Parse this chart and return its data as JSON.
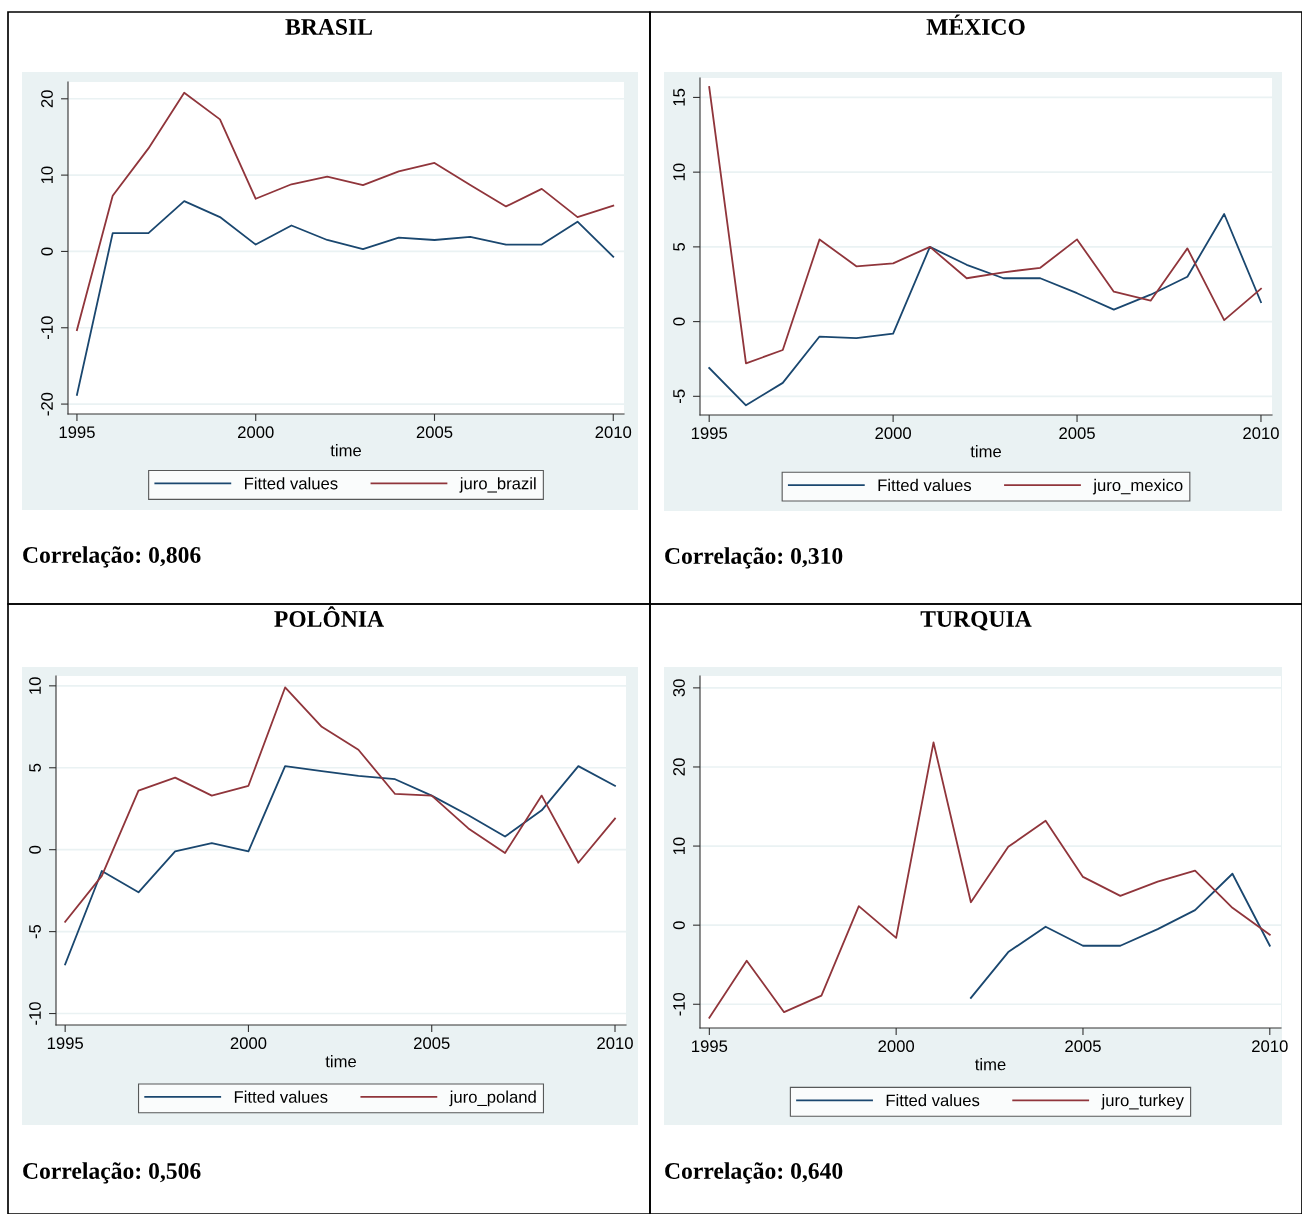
{
  "chart_data": [
    {
      "type": "line",
      "title": "BRASIL",
      "xlabel": "time",
      "x": [
        1995,
        1996,
        1997,
        1998,
        1999,
        2000,
        2001,
        2002,
        2003,
        2004,
        2005,
        2006,
        2007,
        2008,
        2009,
        2010
      ],
      "series": [
        {
          "name": "Fitted values",
          "color": "#1a476f",
          "values": [
            -18.8,
            2.4,
            2.4,
            6.6,
            4.5,
            0.9,
            3.4,
            1.5,
            0.3,
            1.8,
            1.5,
            1.9,
            0.9,
            0.9,
            3.9,
            -0.7
          ]
        },
        {
          "name": "juro_brazil",
          "color": "#90353b",
          "values": [
            -10.3,
            7.3,
            13.5,
            20.8,
            17.3,
            6.9,
            8.8,
            9.8,
            8.7,
            10.5,
            11.6,
            8.7,
            5.9,
            8.2,
            4.5,
            6.0
          ]
        }
      ],
      "xlim": [
        1994.75,
        2010.3
      ],
      "xticks": [
        1995,
        2000,
        2005,
        2010
      ],
      "ylim": [
        -21.3,
        22.2
      ],
      "yticks": [
        -20,
        -10,
        0,
        10,
        20
      ],
      "grid": "y",
      "legend": "bottom",
      "annotations": [
        "Correlação: 0,806"
      ]
    },
    {
      "type": "line",
      "title": "MÉXICO",
      "xlabel": "time",
      "x": [
        1995,
        1996,
        1997,
        1998,
        1999,
        2000,
        2001,
        2002,
        2003,
        2004,
        2005,
        2006,
        2007,
        2008,
        2009,
        2010
      ],
      "series": [
        {
          "name": "Fitted values",
          "color": "#1a476f",
          "values": [
            -3.1,
            -5.6,
            -4.1,
            -1.0,
            -1.1,
            -0.8,
            5.0,
            3.8,
            2.9,
            2.9,
            1.9,
            0.8,
            1.8,
            3.0,
            7.2,
            1.3
          ]
        },
        {
          "name": "juro_mexico",
          "color": "#90353b",
          "values": [
            15.7,
            -2.8,
            -1.9,
            5.5,
            3.7,
            3.9,
            5.0,
            2.9,
            3.3,
            3.6,
            5.5,
            2.0,
            1.4,
            4.9,
            0.1,
            2.2
          ]
        }
      ],
      "xlim": [
        1994.75,
        2010.3
      ],
      "xticks": [
        1995,
        2000,
        2005,
        2010
      ],
      "ylim": [
        -6.25,
        16.3
      ],
      "yticks": [
        -5,
        0,
        5,
        10,
        15
      ],
      "grid": "y",
      "legend": "bottom",
      "annotations": [
        "Correlação: 0,310"
      ]
    },
    {
      "type": "line",
      "title": "POLÔNIA",
      "xlabel": "time",
      "x": [
        1995,
        1996,
        1997,
        1998,
        1999,
        2000,
        2001,
        2002,
        2003,
        2004,
        2005,
        2006,
        2007,
        2008,
        2009,
        2010
      ],
      "series": [
        {
          "name": "Fitted values",
          "color": "#1a476f",
          "values": [
            -7.0,
            -1.3,
            -2.6,
            -0.1,
            0.4,
            -0.1,
            5.1,
            4.8,
            4.5,
            4.3,
            3.3,
            2.1,
            0.8,
            2.4,
            5.1,
            3.9
          ]
        },
        {
          "name": "juro_poland",
          "color": "#90353b",
          "values": [
            -4.4,
            -1.6,
            3.6,
            4.4,
            3.3,
            3.9,
            9.9,
            7.5,
            6.1,
            3.4,
            3.3,
            1.3,
            -0.2,
            3.3,
            -0.8,
            1.9
          ]
        }
      ],
      "xlim": [
        1994.75,
        2010.3
      ],
      "xticks": [
        1995,
        2000,
        2005,
        2010
      ],
      "ylim": [
        -10.7,
        10.6
      ],
      "yticks": [
        -10,
        -5,
        0,
        5,
        10
      ],
      "grid": "y",
      "legend": "bottom",
      "annotations": [
        "Correlação: 0,506"
      ]
    },
    {
      "type": "line",
      "title": "TURQUIA",
      "xlabel": "time",
      "x": [
        1995,
        1996,
        1997,
        1998,
        1999,
        2000,
        2001,
        2002,
        2003,
        2004,
        2005,
        2006,
        2007,
        2008,
        2009,
        2010
      ],
      "series": [
        {
          "name": "Fitted values",
          "color": "#1a476f",
          "values": [
            null,
            null,
            null,
            null,
            null,
            null,
            null,
            -9.2,
            -3.4,
            -0.2,
            -2.6,
            -2.6,
            -0.5,
            1.9,
            6.5,
            -2.6
          ]
        },
        {
          "name": "juro_turkey",
          "color": "#90353b",
          "values": [
            -11.7,
            -4.5,
            -11.0,
            -8.9,
            2.4,
            -1.6,
            23.1,
            2.9,
            9.9,
            13.2,
            6.1,
            3.7,
            5.5,
            6.9,
            2.2,
            -1.2
          ]
        }
      ],
      "xlim": [
        1994.75,
        2010.3
      ],
      "xticks": [
        1995,
        2000,
        2005,
        2010
      ],
      "ylim": [
        -13.0,
        31.5
      ],
      "yticks": [
        -10,
        0,
        10,
        20,
        30
      ],
      "grid": "y",
      "legend": "bottom",
      "annotations": [
        "Correlação: 0,640"
      ]
    }
  ]
}
